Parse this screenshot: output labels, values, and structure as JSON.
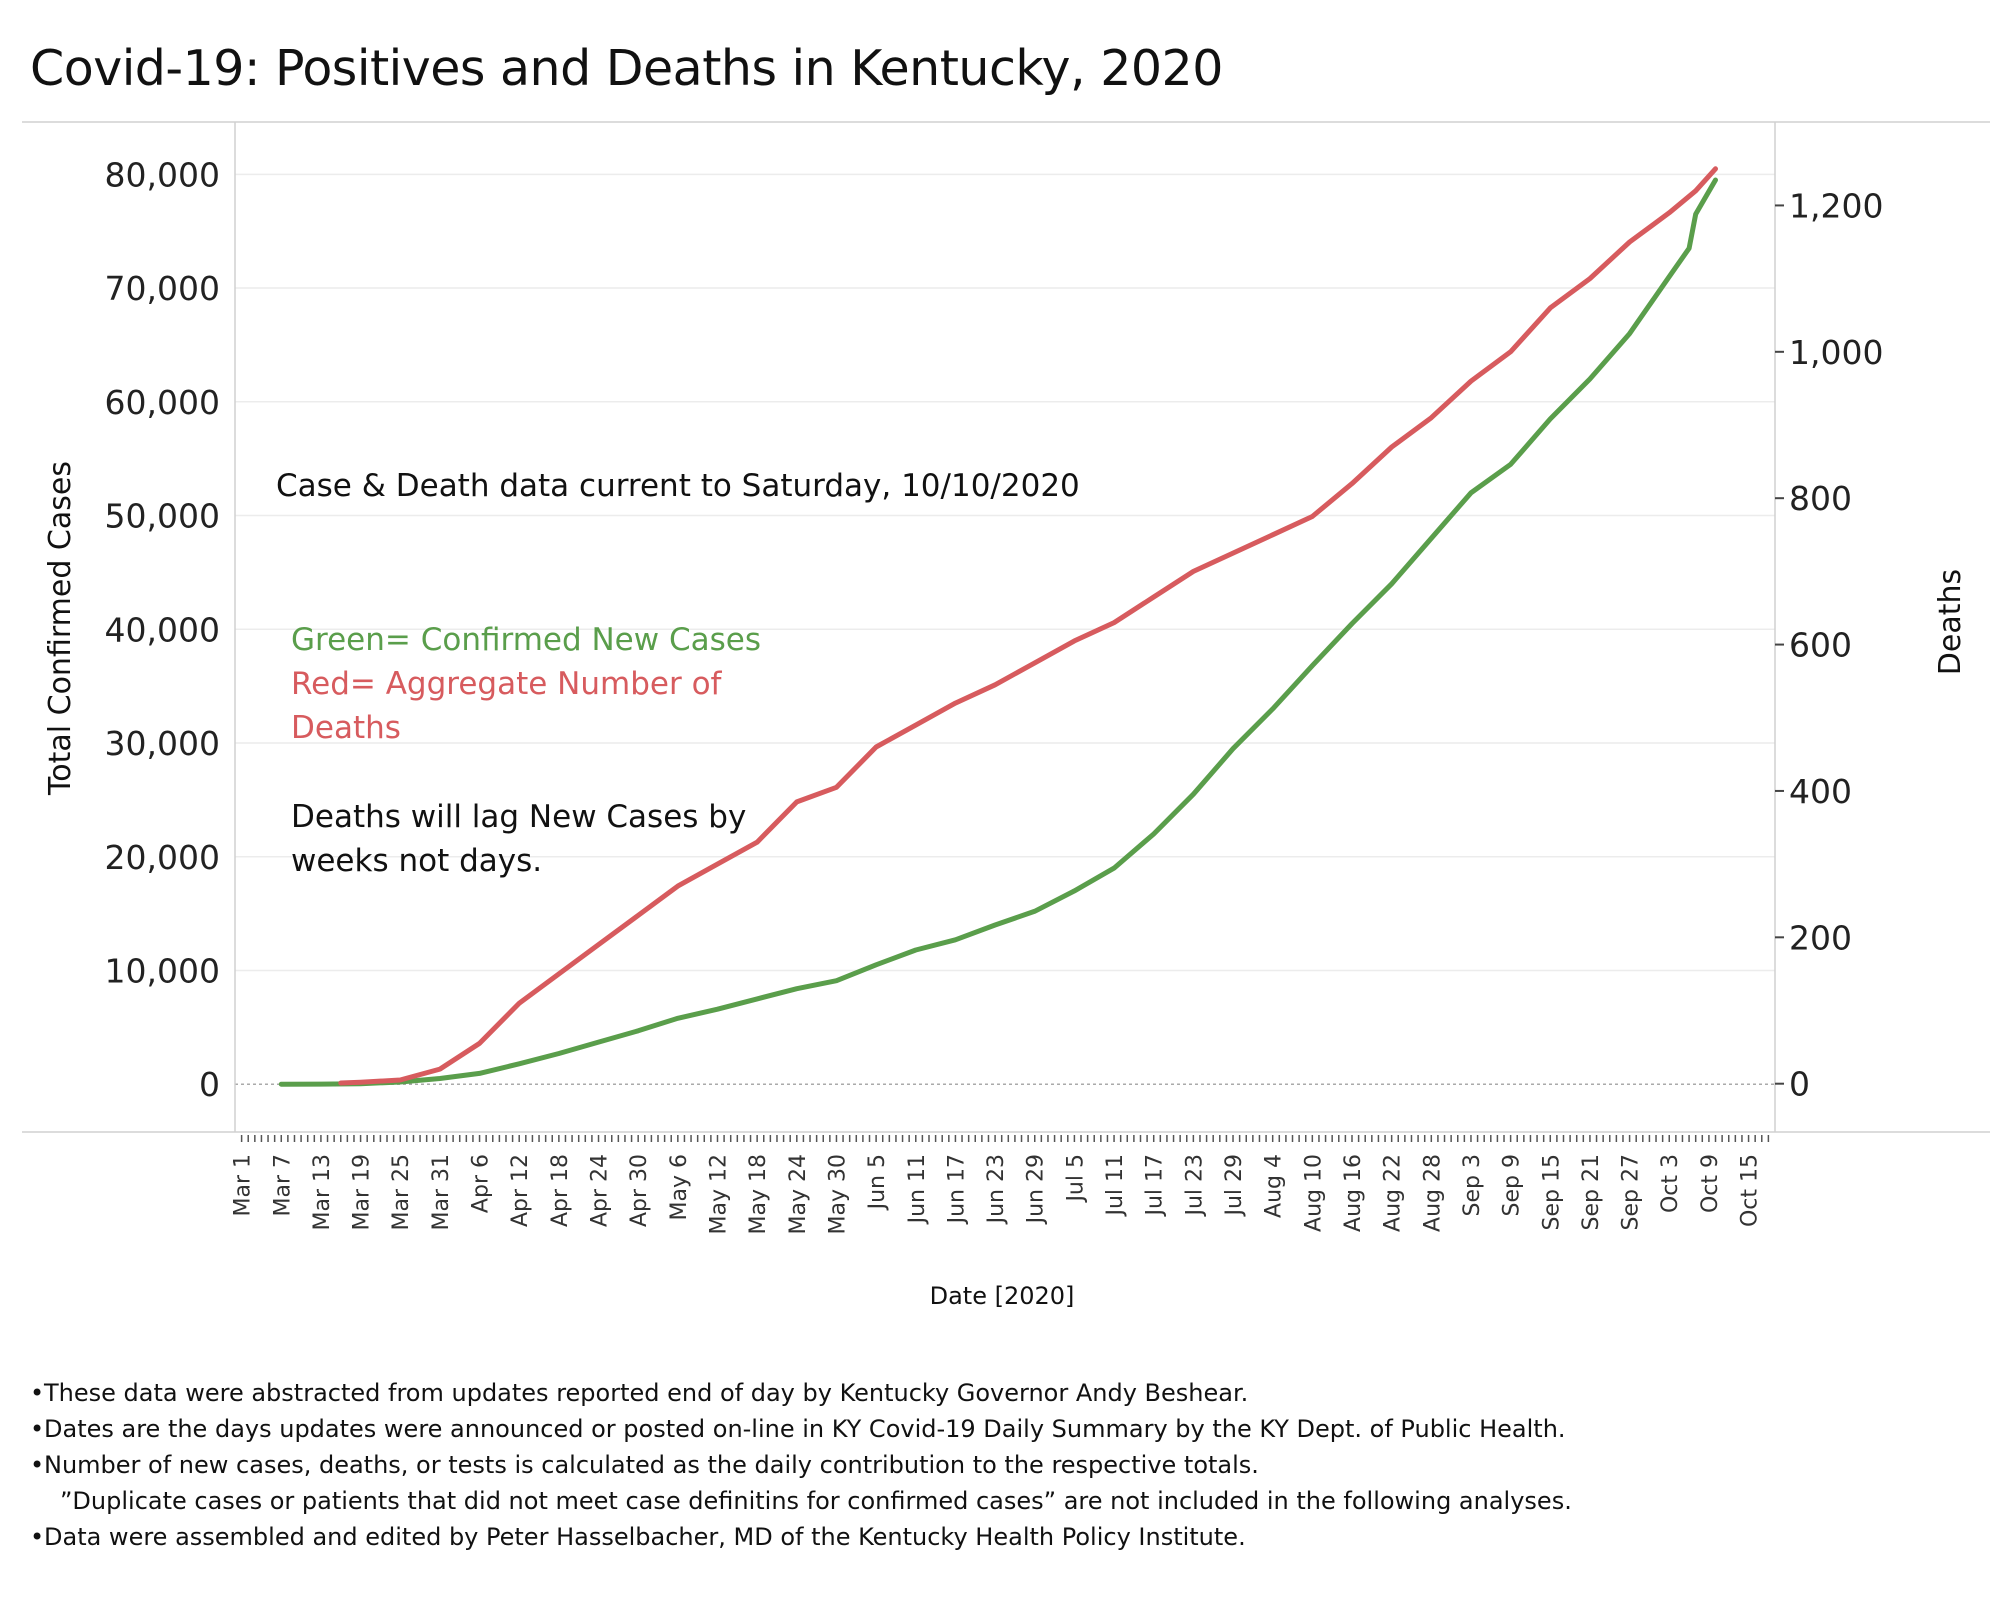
{
  "title": "Covid-19: Positives and Deaths in Kentucky,  2020",
  "annotations": {
    "current_to": "Case & Death data current to Saturday,  10/10/2020",
    "legend_green": "Green= Confirmed New Cases",
    "legend_red_line1": "Red= Aggregate Number of",
    "legend_red_line2": "Deaths",
    "lag_line1": "Deaths will lag New Cases by",
    "lag_line2": "weeks not days."
  },
  "footnotes": [
    "These data were abstracted from updates reported end of day by Kentucky Governor Andy Beshear.",
    "Dates are the days  updates were announced or posted on-line in KY Covid-19 Daily Summary by the KY Dept. of Public Health.",
    "Number of new cases, deaths, or tests is calculated as the daily contribution to the respective totals.",
    "”Duplicate cases or patients that did not meet  case definitins for confirmed cases” are not included in the following analyses.",
    "Data were assembled and edited by Peter Hasselbacher, MD of the Kentucky Health Policy Institute."
  ],
  "colors": {
    "cases": "#5a9e4b",
    "deaths": "#d75b5e",
    "grid": "#ececec",
    "zero_line": "#aaaaaa"
  },
  "chart_data": {
    "type": "line",
    "title": "Covid-19: Positives and Deaths in Kentucky,  2020",
    "xlabel": "Date [2020]",
    "ylabel": "Total Confirmed Cases",
    "y2label": "Deaths",
    "x_ticks": [
      "Mar 1",
      "Mar 7",
      "Mar 13",
      "Mar 19",
      "Mar 25",
      "Mar 31",
      "Apr 6",
      "Apr 12",
      "Apr 18",
      "Apr 24",
      "Apr 30",
      "May 6",
      "May 12",
      "May 18",
      "May 24",
      "May 30",
      "Jun 5",
      "Jun 11",
      "Jun 17",
      "Jun 23",
      "Jun 29",
      "Jul 5",
      "Jul 11",
      "Jul 17",
      "Jul 23",
      "Jul 29",
      "Aug 4",
      "Aug 10",
      "Aug 16",
      "Aug 22",
      "Aug 28",
      "Sep 3",
      "Sep 9",
      "Sep 15",
      "Sep 21",
      "Sep 27",
      "Oct 3",
      "Oct 9",
      "Oct 15"
    ],
    "xlim": [
      "2020-02-29",
      "2020-10-19"
    ],
    "ylim": [
      -4200,
      84600
    ],
    "y_ticks": [
      0,
      10000,
      20000,
      30000,
      40000,
      50000,
      60000,
      70000,
      80000
    ],
    "y_tick_labels": [
      "0",
      "10,000",
      "20,000",
      "30,000",
      "40,000",
      "50,000",
      "60,000",
      "70,000",
      "80,000"
    ],
    "y2lim": [
      -66,
      1314
    ],
    "y2_ticks": [
      0,
      200,
      400,
      600,
      800,
      1000,
      1200
    ],
    "y2_tick_labels": [
      "0",
      "200",
      "400",
      "600",
      "800",
      "1,000",
      "1,200"
    ],
    "grid": true,
    "series": [
      {
        "name": "Confirmed New Cases",
        "axis": "left",
        "color": "#5a9e4b",
        "points": [
          [
            "2020-03-07",
            0
          ],
          [
            "2020-03-13",
            10
          ],
          [
            "2020-03-19",
            50
          ],
          [
            "2020-03-25",
            200
          ],
          [
            "2020-03-31",
            500
          ],
          [
            "2020-04-06",
            950
          ],
          [
            "2020-04-12",
            1800
          ],
          [
            "2020-04-18",
            2700
          ],
          [
            "2020-04-24",
            3700
          ],
          [
            "2020-04-30",
            4700
          ],
          [
            "2020-05-06",
            5800
          ],
          [
            "2020-05-12",
            6600
          ],
          [
            "2020-05-18",
            7500
          ],
          [
            "2020-05-24",
            8400
          ],
          [
            "2020-05-30",
            9100
          ],
          [
            "2020-06-05",
            10500
          ],
          [
            "2020-06-11",
            11800
          ],
          [
            "2020-06-17",
            12700
          ],
          [
            "2020-06-23",
            14000
          ],
          [
            "2020-06-29",
            15200
          ],
          [
            "2020-07-05",
            17000
          ],
          [
            "2020-07-11",
            19000
          ],
          [
            "2020-07-17",
            22000
          ],
          [
            "2020-07-23",
            25500
          ],
          [
            "2020-07-29",
            29500
          ],
          [
            "2020-08-04",
            33000
          ],
          [
            "2020-08-10",
            36800
          ],
          [
            "2020-08-16",
            40500
          ],
          [
            "2020-08-22",
            44000
          ],
          [
            "2020-08-28",
            48000
          ],
          [
            "2020-09-03",
            52000
          ],
          [
            "2020-09-09",
            54500
          ],
          [
            "2020-09-15",
            58500
          ],
          [
            "2020-09-21",
            62000
          ],
          [
            "2020-09-27",
            66000
          ],
          [
            "2020-10-03",
            71000
          ],
          [
            "2020-10-06",
            73500
          ],
          [
            "2020-10-07",
            76500
          ],
          [
            "2020-10-10",
            79500
          ]
        ]
      },
      {
        "name": "Aggregate Number of Deaths",
        "axis": "right",
        "color": "#d75b5e",
        "points": [
          [
            "2020-03-16",
            1
          ],
          [
            "2020-03-19",
            2
          ],
          [
            "2020-03-25",
            5
          ],
          [
            "2020-03-31",
            20
          ],
          [
            "2020-04-06",
            55
          ],
          [
            "2020-04-12",
            110
          ],
          [
            "2020-04-18",
            150
          ],
          [
            "2020-04-24",
            190
          ],
          [
            "2020-04-30",
            230
          ],
          [
            "2020-05-06",
            270
          ],
          [
            "2020-05-12",
            300
          ],
          [
            "2020-05-18",
            330
          ],
          [
            "2020-05-24",
            385
          ],
          [
            "2020-05-30",
            405
          ],
          [
            "2020-06-05",
            460
          ],
          [
            "2020-06-11",
            490
          ],
          [
            "2020-06-17",
            520
          ],
          [
            "2020-06-23",
            545
          ],
          [
            "2020-06-29",
            575
          ],
          [
            "2020-07-05",
            605
          ],
          [
            "2020-07-11",
            630
          ],
          [
            "2020-07-17",
            665
          ],
          [
            "2020-07-23",
            700
          ],
          [
            "2020-07-29",
            725
          ],
          [
            "2020-08-04",
            750
          ],
          [
            "2020-08-10",
            775
          ],
          [
            "2020-08-16",
            820
          ],
          [
            "2020-08-22",
            870
          ],
          [
            "2020-08-28",
            910
          ],
          [
            "2020-09-03",
            960
          ],
          [
            "2020-09-09",
            1000
          ],
          [
            "2020-09-15",
            1060
          ],
          [
            "2020-09-21",
            1100
          ],
          [
            "2020-09-27",
            1150
          ],
          [
            "2020-10-03",
            1190
          ],
          [
            "2020-10-07",
            1220
          ],
          [
            "2020-10-10",
            1250
          ]
        ]
      }
    ]
  }
}
